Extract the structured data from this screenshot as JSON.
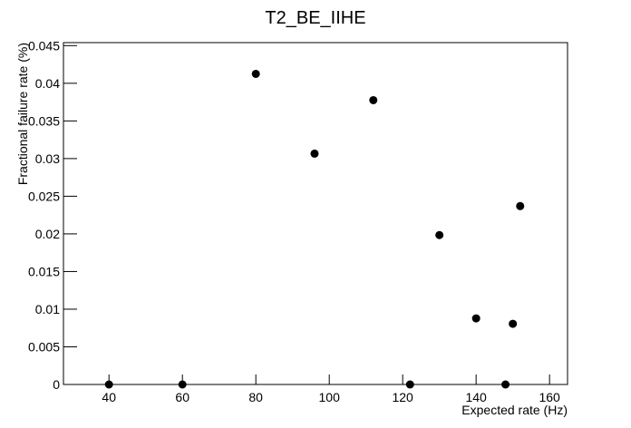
{
  "chart_data": {
    "type": "scatter",
    "title": "T2_BE_IIHE",
    "x_label": "Expected rate (Hz)",
    "y_label": "Fractional failure rate (%)",
    "x": [
      40,
      60,
      80,
      96,
      112,
      122,
      130,
      140,
      148,
      150,
      152
    ],
    "values": [
      0,
      0,
      0.04125,
      0.03066,
      0.03776,
      0,
      0.01984,
      0.00878,
      0,
      0.00806,
      0.02369
    ],
    "color": "#000000",
    "xlim": [
      27.6,
      164.9
    ],
    "xticks": [
      40,
      60,
      80,
      100,
      120,
      140,
      160
    ],
    "ylim": [
      0,
      0.0454
    ],
    "yticks": [
      0,
      0.005,
      0.01,
      0.015,
      0.02,
      0.025,
      0.03,
      0.035,
      0.04,
      0.045
    ],
    "grid": false
  }
}
